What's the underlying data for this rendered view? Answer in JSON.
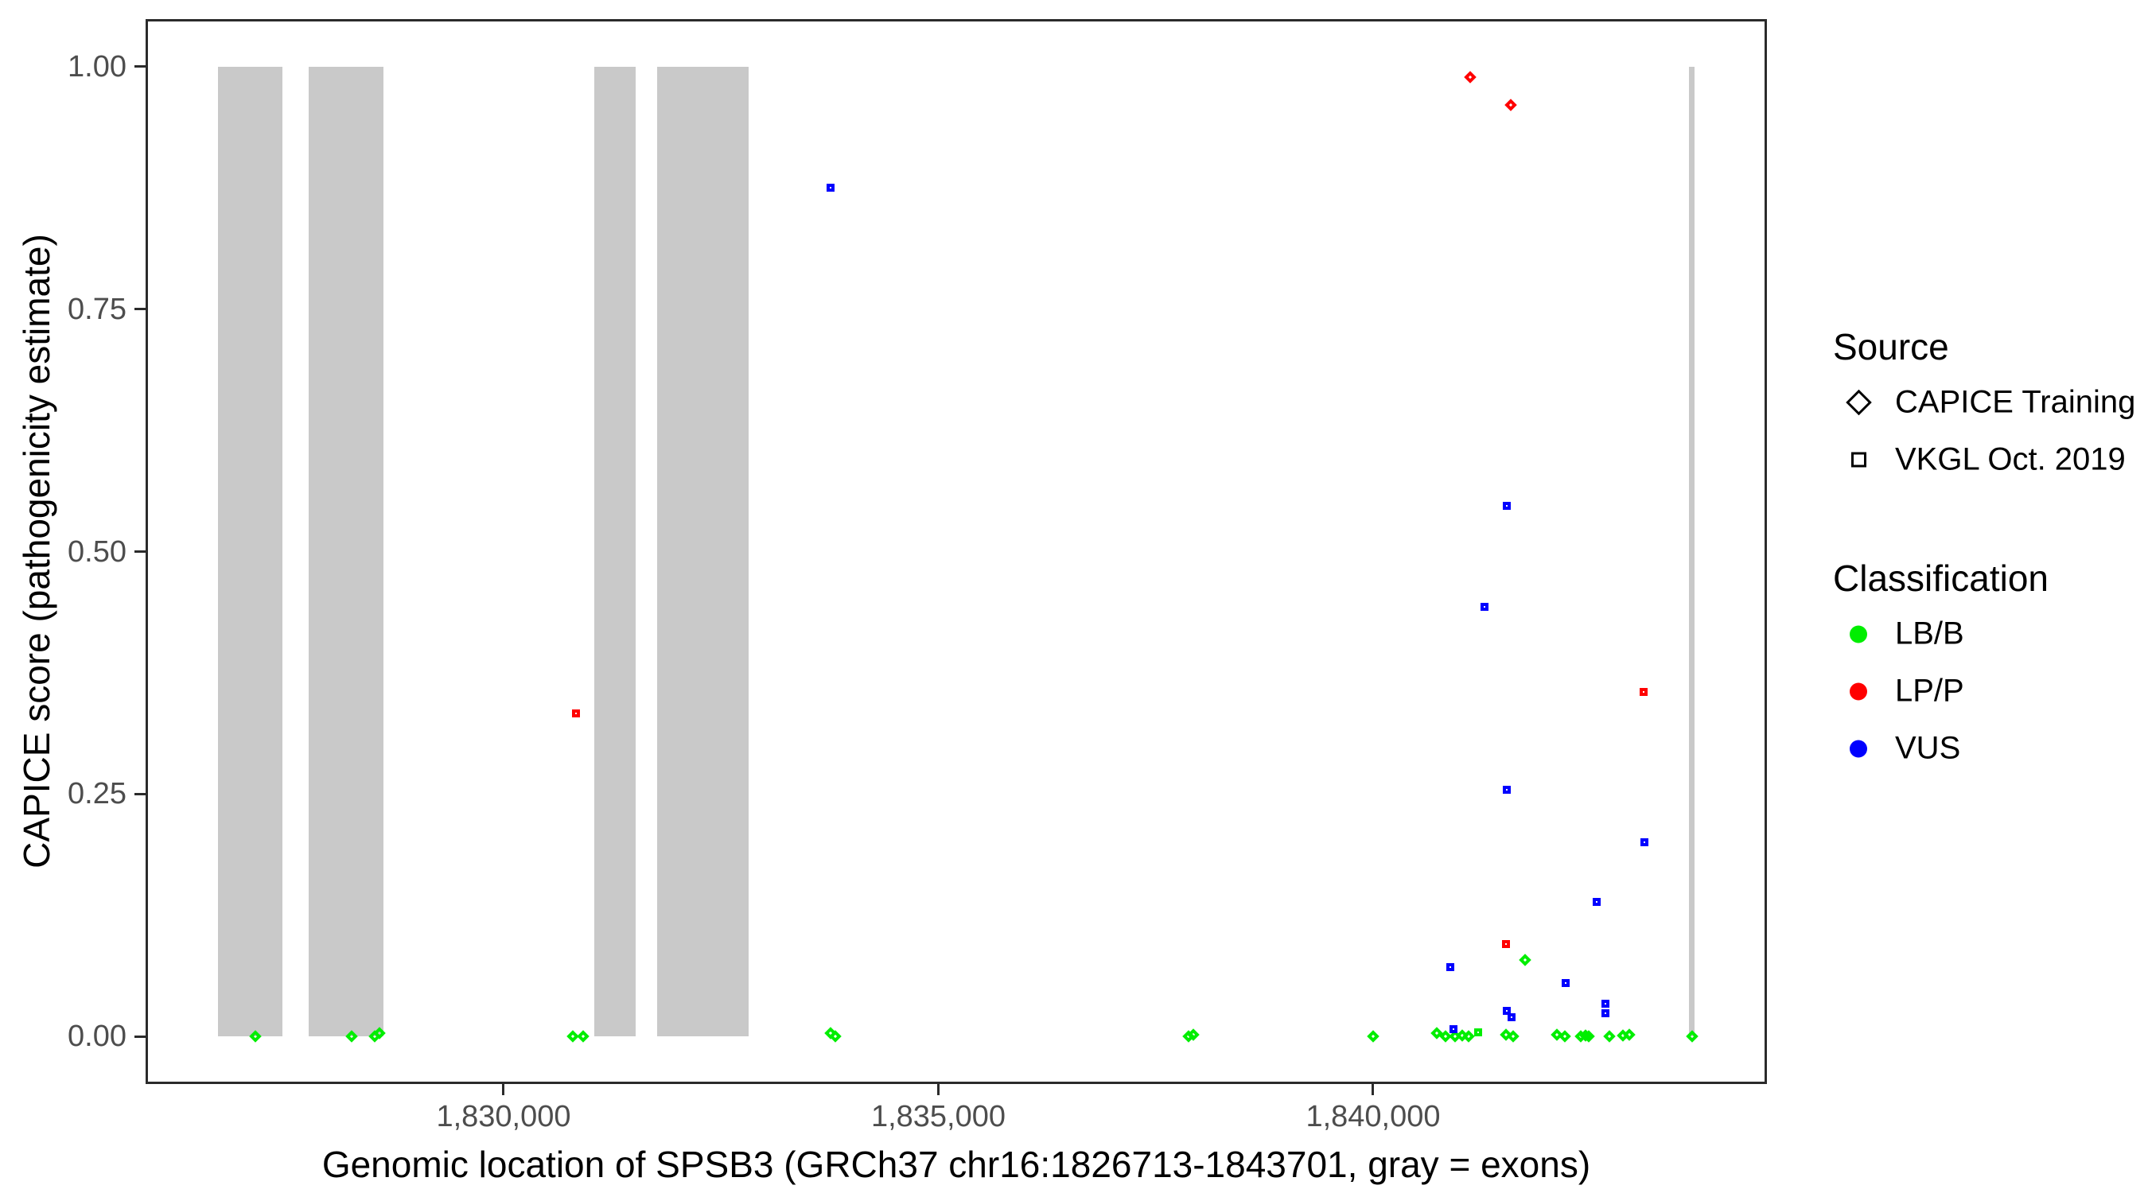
{
  "chart_data": {
    "type": "scatter",
    "xlabel": "Genomic location of SPSB3 (GRCh37 chr16:1826713-1843701, gray = exons)",
    "ylabel": "CAPICE score (pathogenicity estimate)",
    "x_range": [
      1825883,
      1844529
    ],
    "y_range": [
      -0.0492,
      1.0492
    ],
    "grid": "off",
    "x_ticks": [
      {
        "value": 1830000,
        "label": "1,830,000"
      },
      {
        "value": 1835000,
        "label": "1,835,000"
      },
      {
        "value": 1840000,
        "label": "1,840,000"
      }
    ],
    "y_ticks": [
      {
        "value": 0.0,
        "label": "0.00"
      },
      {
        "value": 0.25,
        "label": "0.25"
      },
      {
        "value": 0.5,
        "label": "0.50"
      },
      {
        "value": 0.75,
        "label": "0.75"
      },
      {
        "value": 1.0,
        "label": "1.00"
      }
    ],
    "exon_color": "#C9C9C9",
    "exons_bp": [
      [
        1826713,
        1827456
      ],
      [
        1827758,
        1828617
      ],
      [
        1831043,
        1831519
      ],
      [
        1831766,
        1832818
      ],
      [
        1843633,
        1843701
      ]
    ],
    "series": [
      {
        "name": "CAPICE Training / LB/B",
        "source": "CAPICE Training",
        "classification": "LB/B",
        "marker": "diamond",
        "color": "#00EE00",
        "points": [
          [
            1827145,
            0
          ],
          [
            1828252,
            0
          ],
          [
            1828518,
            0
          ],
          [
            1828572,
            0.003
          ],
          [
            1830796,
            0
          ],
          [
            1830915,
            0
          ],
          [
            1833760,
            0.003
          ],
          [
            1833815,
            0
          ],
          [
            1837877,
            0
          ],
          [
            1837932,
            0.002
          ],
          [
            1840000,
            0
          ],
          [
            1840733,
            0.003
          ],
          [
            1840833,
            0
          ],
          [
            1840943,
            0
          ],
          [
            1841025,
            0.001
          ],
          [
            1841098,
            0
          ],
          [
            1841528,
            0.002
          ],
          [
            1841610,
            0
          ],
          [
            1841748,
            0.079
          ],
          [
            1842114,
            0.002
          ],
          [
            1842206,
            0
          ],
          [
            1842389,
            0
          ],
          [
            1842444,
            0.001
          ],
          [
            1842481,
            0
          ],
          [
            1842719,
            0
          ],
          [
            1842874,
            0.001
          ],
          [
            1842947,
            0.002
          ],
          [
            1843670,
            0
          ]
        ]
      },
      {
        "name": "VKGL Oct. 2019 / LB/B",
        "source": "VKGL Oct. 2019",
        "classification": "LB/B",
        "marker": "square",
        "color": "#00EE00",
        "points": [
          [
            1841208,
            0.004
          ]
        ]
      },
      {
        "name": "VKGL Oct. 2019 / VUS",
        "source": "VKGL Oct. 2019",
        "classification": "VUS",
        "marker": "square",
        "color": "#0000FF",
        "points": [
          [
            1833760,
            0.875
          ],
          [
            1841537,
            0.547
          ],
          [
            1841281,
            0.443
          ],
          [
            1841537,
            0.254
          ],
          [
            1843120,
            0.2
          ],
          [
            1842571,
            0.139
          ],
          [
            1840888,
            0.071
          ],
          [
            1842214,
            0.055
          ],
          [
            1842672,
            0.034
          ],
          [
            1842672,
            0.024
          ],
          [
            1841537,
            0.026
          ],
          [
            1841592,
            0.02
          ],
          [
            1840924,
            0.007
          ]
        ]
      },
      {
        "name": "VKGL Oct. 2019 / LP/P",
        "source": "VKGL Oct. 2019",
        "classification": "LP/P",
        "marker": "square",
        "color": "#FF0000",
        "points": [
          [
            1830833,
            0.333
          ],
          [
            1841528,
            0.095
          ],
          [
            1843111,
            0.355
          ]
        ]
      },
      {
        "name": "CAPICE Training / LP/P",
        "source": "CAPICE Training",
        "classification": "LP/P",
        "marker": "diamond",
        "color": "#FF0000",
        "points": [
          [
            1841116,
            0.989
          ],
          [
            1841583,
            0.961
          ]
        ]
      }
    ]
  },
  "legend": {
    "source": {
      "title": "Source",
      "items": [
        {
          "label": "CAPICE Training",
          "marker": "diamond"
        },
        {
          "label": "VKGL Oct. 2019",
          "marker": "square"
        }
      ]
    },
    "classification": {
      "title": "Classification",
      "items": [
        {
          "label": "LB/B",
          "color": "#00EE00"
        },
        {
          "label": "LP/P",
          "color": "#FF0000"
        },
        {
          "label": "VUS",
          "color": "#0000FF"
        }
      ]
    }
  }
}
